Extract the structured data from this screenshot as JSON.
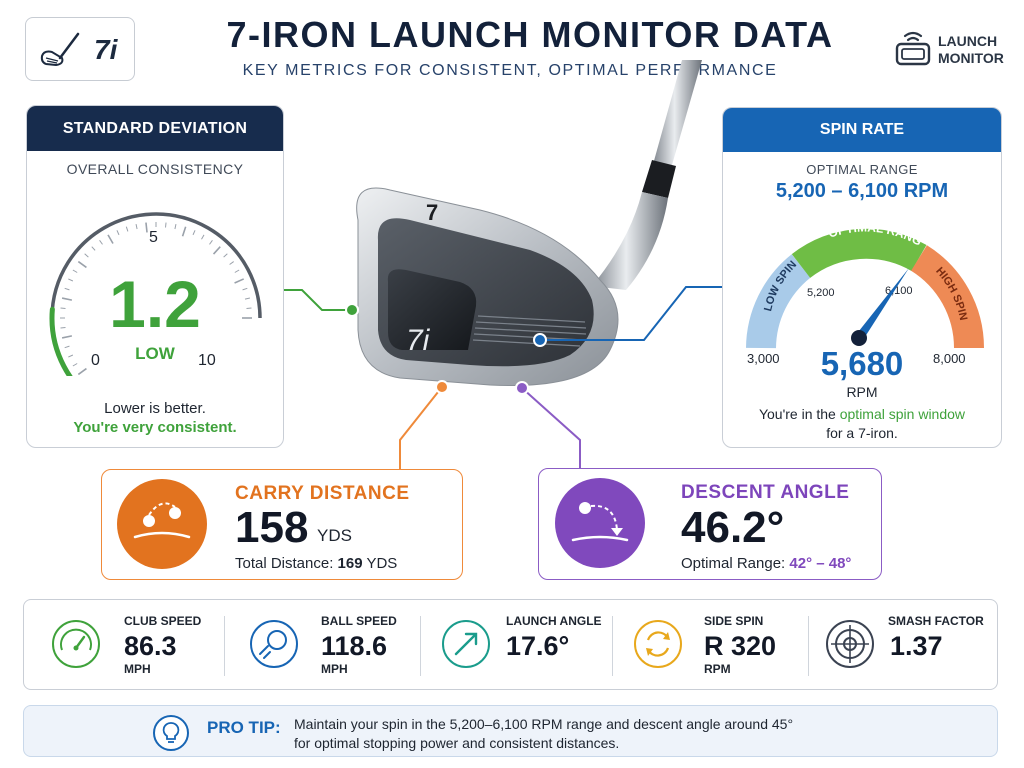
{
  "header": {
    "logo_text": "7i",
    "title": "7-IRON LAUNCH MONITOR DATA",
    "subtitle": "KEY METRICS FOR CONSISTENT, OPTIMAL PERFORMANCE",
    "launch_monitor_line1": "LAUNCH",
    "launch_monitor_line2": "MONITOR"
  },
  "standard_deviation": {
    "heading": "STANDARD DEVIATION",
    "subheading": "OVERALL CONSISTENCY",
    "value": "1.2",
    "rating": "LOW",
    "scale_min": "0",
    "scale_mid": "5",
    "scale_max": "10",
    "value_fraction": 0.12,
    "note_line1": "Lower is better.",
    "note_line2": "You're very consistent.",
    "accent_color": "#3fa23b"
  },
  "iron": {
    "club_number": "7",
    "face_text": "7i"
  },
  "spin_rate": {
    "heading": "SPIN RATE",
    "subheading": "OPTIMAL RANGE",
    "range": "5,200 – 6,100 RPM",
    "arc_low": "LOW SPIN",
    "arc_optimal": "OPTIMAL RANGE",
    "arc_high": "HIGH SPIN",
    "tick_5200": "5,200",
    "tick_6100": "6,100",
    "scale_min": "3,000",
    "scale_max": "8,000",
    "value": "5,680",
    "unit": "RPM",
    "note_part1": "You're in the ",
    "note_highlight": "optimal spin window",
    "note_line2": "for a 7-iron.",
    "accent_color": "#1765b4"
  },
  "carry": {
    "label": "CARRY DISTANCE",
    "value": "158",
    "unit": "YDS",
    "total_label": "Total Distance: ",
    "total_value": "169",
    "total_unit": " YDS",
    "accent_color": "#e2731f"
  },
  "descent": {
    "label": "DESCENT ANGLE",
    "value": "46.2°",
    "optimal_label": "Optimal Range: ",
    "optimal_value": "42° – 48°",
    "accent_color": "#8049bd"
  },
  "metrics": [
    {
      "label": "CLUB SPEED",
      "value": "86.3",
      "unit": "MPH",
      "icon": "speedometer-icon",
      "color": "#3fa23b"
    },
    {
      "label": "BALL SPEED",
      "value": "118.6",
      "unit": "MPH",
      "icon": "golf-ball-speed-icon",
      "color": "#1765b4"
    },
    {
      "label": "LAUNCH ANGLE",
      "value": "17.6°",
      "unit": "",
      "icon": "launch-arrow-icon",
      "color": "#1a9c8c"
    },
    {
      "label": "SIDE SPIN",
      "value": "R 320",
      "unit": "RPM",
      "icon": "rotation-icon",
      "color": "#e8a81c"
    },
    {
      "label": "SMASH FACTOR",
      "value": "1.37",
      "unit": "",
      "icon": "target-icon",
      "color": "#3b4352"
    }
  ],
  "pro_tip": {
    "label": "PRO TIP:",
    "line1": "Maintain your spin in the 5,200–6,100 RPM range and descent angle around 45°",
    "line2": "for optimal stopping power and consistent distances."
  }
}
